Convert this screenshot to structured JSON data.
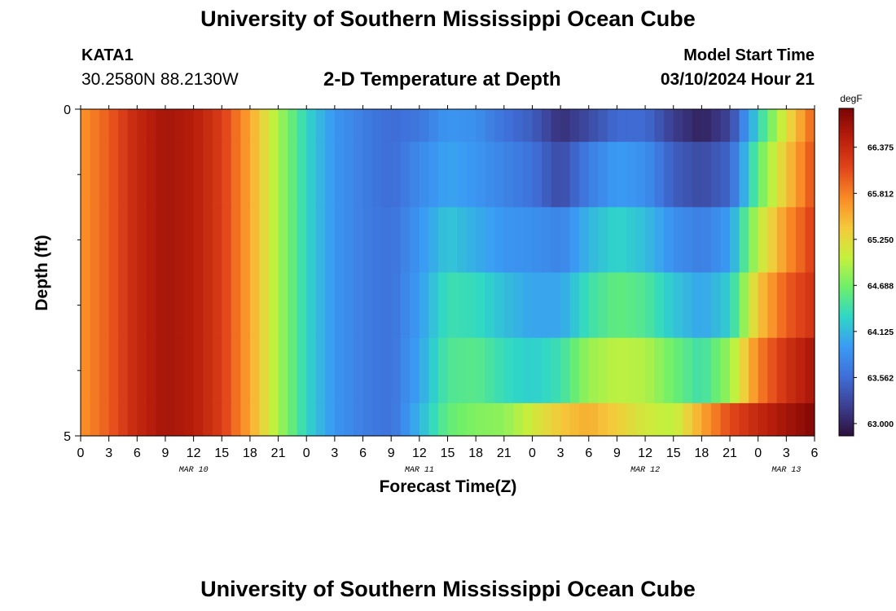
{
  "header": {
    "title": "University of Southern Mississippi Ocean Cube",
    "station_id": "KATA1",
    "station_coords": "30.2580N  88.2130W",
    "plot_title": "2-D Temperature at Depth",
    "model_start_label": "Model Start Time",
    "model_start_value": "03/10/2024 Hour 21"
  },
  "footer": {
    "title": "University of Southern Mississippi Ocean Cube"
  },
  "chart_data": {
    "type": "heatmap",
    "title": "2-D Temperature at Depth",
    "xlabel": "Forecast Time(Z)",
    "ylabel": "Depth (ft)",
    "x_tick_labels": [
      "0",
      "3",
      "6",
      "9",
      "12",
      "15",
      "18",
      "21",
      "0",
      "3",
      "6",
      "9",
      "12",
      "15",
      "18",
      "21",
      "0",
      "3",
      "6",
      "9",
      "12",
      "15",
      "18",
      "21",
      "0",
      "3",
      "6"
    ],
    "x_day_labels": [
      {
        "label": "MAR 10",
        "tick_index": 4
      },
      {
        "label": "MAR 11",
        "tick_index": 12
      },
      {
        "label": "MAR 12",
        "tick_index": 20
      },
      {
        "label": "MAR 13",
        "tick_index": 25
      }
    ],
    "x_range_hours": [
      0,
      78
    ],
    "y_tick_labels": [
      "0",
      "5"
    ],
    "y_range": [
      0,
      5
    ],
    "y_inverted": true,
    "colorbar": {
      "unit": "degF",
      "tick_labels": [
        "66.375",
        "65.812",
        "65.250",
        "64.688",
        "64.125",
        "63.562",
        "63.000"
      ],
      "min": 62.85,
      "max": 66.85,
      "colors": [
        "#2d0f3a",
        "#3c3f91",
        "#3f6fd8",
        "#3a9bf4",
        "#2fd7c7",
        "#6ef06a",
        "#c6f03d",
        "#f5c93b",
        "#f98a25",
        "#e1451a",
        "#b81e0c",
        "#7a0404"
      ]
    },
    "layers": [
      {
        "depth_range": [
          0,
          0.5
        ],
        "keyframes": [
          [
            0,
            65.7
          ],
          [
            3,
            66.0
          ],
          [
            6,
            66.4
          ],
          [
            9,
            66.6
          ],
          [
            12,
            66.5
          ],
          [
            15,
            66.2
          ],
          [
            18,
            65.6
          ],
          [
            21,
            64.9
          ],
          [
            24,
            64.3
          ],
          [
            27,
            63.9
          ],
          [
            30,
            63.7
          ],
          [
            33,
            63.55
          ],
          [
            36,
            63.65
          ],
          [
            39,
            63.9
          ],
          [
            42,
            63.85
          ],
          [
            45,
            63.6
          ],
          [
            48,
            63.45
          ],
          [
            51,
            63.1
          ],
          [
            54,
            63.3
          ],
          [
            57,
            63.55
          ],
          [
            60,
            63.55
          ],
          [
            63,
            63.2
          ],
          [
            66,
            63.0
          ],
          [
            69,
            63.25
          ],
          [
            72,
            64.3
          ],
          [
            75,
            65.2
          ],
          [
            78,
            66.0
          ]
        ]
      },
      {
        "depth_range": [
          0.5,
          1.5
        ],
        "keyframes": [
          [
            0,
            65.7
          ],
          [
            3,
            66.0
          ],
          [
            6,
            66.4
          ],
          [
            9,
            66.6
          ],
          [
            12,
            66.5
          ],
          [
            15,
            66.2
          ],
          [
            18,
            65.6
          ],
          [
            21,
            64.9
          ],
          [
            24,
            64.3
          ],
          [
            27,
            63.9
          ],
          [
            30,
            63.7
          ],
          [
            33,
            63.55
          ],
          [
            36,
            63.8
          ],
          [
            39,
            64.0
          ],
          [
            42,
            63.9
          ],
          [
            45,
            63.75
          ],
          [
            48,
            63.6
          ],
          [
            51,
            63.3
          ],
          [
            54,
            63.7
          ],
          [
            57,
            63.95
          ],
          [
            60,
            63.85
          ],
          [
            63,
            63.45
          ],
          [
            66,
            63.3
          ],
          [
            69,
            63.5
          ],
          [
            72,
            64.6
          ],
          [
            75,
            65.4
          ],
          [
            78,
            66.1
          ]
        ]
      },
      {
        "depth_range": [
          1.5,
          2.5
        ],
        "keyframes": [
          [
            0,
            65.7
          ],
          [
            3,
            66.0
          ],
          [
            6,
            66.4
          ],
          [
            9,
            66.6
          ],
          [
            12,
            66.5
          ],
          [
            15,
            66.2
          ],
          [
            18,
            65.6
          ],
          [
            21,
            64.9
          ],
          [
            24,
            64.3
          ],
          [
            27,
            63.9
          ],
          [
            30,
            63.7
          ],
          [
            33,
            63.6
          ],
          [
            36,
            63.9
          ],
          [
            39,
            64.2
          ],
          [
            42,
            64.05
          ],
          [
            45,
            63.9
          ],
          [
            48,
            63.85
          ],
          [
            51,
            63.75
          ],
          [
            54,
            64.1
          ],
          [
            57,
            64.3
          ],
          [
            60,
            64.15
          ],
          [
            63,
            63.85
          ],
          [
            66,
            63.7
          ],
          [
            69,
            63.95
          ],
          [
            72,
            65.0
          ],
          [
            75,
            65.7
          ],
          [
            78,
            66.2
          ]
        ]
      },
      {
        "depth_range": [
          2.5,
          3.5
        ],
        "keyframes": [
          [
            0,
            65.7
          ],
          [
            3,
            66.0
          ],
          [
            6,
            66.4
          ],
          [
            9,
            66.6
          ],
          [
            12,
            66.5
          ],
          [
            15,
            66.2
          ],
          [
            18,
            65.6
          ],
          [
            21,
            64.9
          ],
          [
            24,
            64.3
          ],
          [
            27,
            63.9
          ],
          [
            30,
            63.7
          ],
          [
            33,
            63.6
          ],
          [
            36,
            63.95
          ],
          [
            39,
            64.4
          ],
          [
            42,
            64.35
          ],
          [
            45,
            64.15
          ],
          [
            48,
            64.0
          ],
          [
            51,
            64.0
          ],
          [
            54,
            64.4
          ],
          [
            57,
            64.6
          ],
          [
            60,
            64.5
          ],
          [
            63,
            64.2
          ],
          [
            66,
            64.0
          ],
          [
            69,
            64.25
          ],
          [
            72,
            65.4
          ],
          [
            75,
            66.0
          ],
          [
            78,
            66.3
          ]
        ]
      },
      {
        "depth_range": [
          3.5,
          4.5
        ],
        "keyframes": [
          [
            0,
            65.7
          ],
          [
            3,
            66.0
          ],
          [
            6,
            66.4
          ],
          [
            9,
            66.6
          ],
          [
            12,
            66.5
          ],
          [
            15,
            66.2
          ],
          [
            18,
            65.6
          ],
          [
            21,
            64.9
          ],
          [
            24,
            64.3
          ],
          [
            27,
            63.9
          ],
          [
            30,
            63.7
          ],
          [
            33,
            63.6
          ],
          [
            36,
            64.0
          ],
          [
            39,
            64.5
          ],
          [
            42,
            64.55
          ],
          [
            45,
            64.35
          ],
          [
            48,
            64.25
          ],
          [
            51,
            64.4
          ],
          [
            54,
            64.85
          ],
          [
            57,
            65.0
          ],
          [
            60,
            64.95
          ],
          [
            63,
            64.65
          ],
          [
            66,
            64.4
          ],
          [
            69,
            64.85
          ],
          [
            72,
            65.8
          ],
          [
            75,
            66.3
          ],
          [
            78,
            66.6
          ]
        ]
      },
      {
        "depth_range": [
          4.5,
          5.0
        ],
        "keyframes": [
          [
            0,
            65.7
          ],
          [
            3,
            66.0
          ],
          [
            6,
            66.4
          ],
          [
            9,
            66.6
          ],
          [
            12,
            66.5
          ],
          [
            15,
            66.2
          ],
          [
            18,
            65.6
          ],
          [
            21,
            64.9
          ],
          [
            24,
            64.3
          ],
          [
            27,
            63.9
          ],
          [
            30,
            63.7
          ],
          [
            33,
            63.6
          ],
          [
            36,
            64.1
          ],
          [
            39,
            64.6
          ],
          [
            42,
            64.75
          ],
          [
            45,
            64.8
          ],
          [
            48,
            65.1
          ],
          [
            51,
            65.4
          ],
          [
            54,
            65.55
          ],
          [
            57,
            65.35
          ],
          [
            60,
            65.1
          ],
          [
            63,
            65.0
          ],
          [
            66,
            65.6
          ],
          [
            69,
            66.1
          ],
          [
            72,
            66.4
          ],
          [
            75,
            66.6
          ],
          [
            78,
            66.8
          ]
        ]
      }
    ]
  }
}
